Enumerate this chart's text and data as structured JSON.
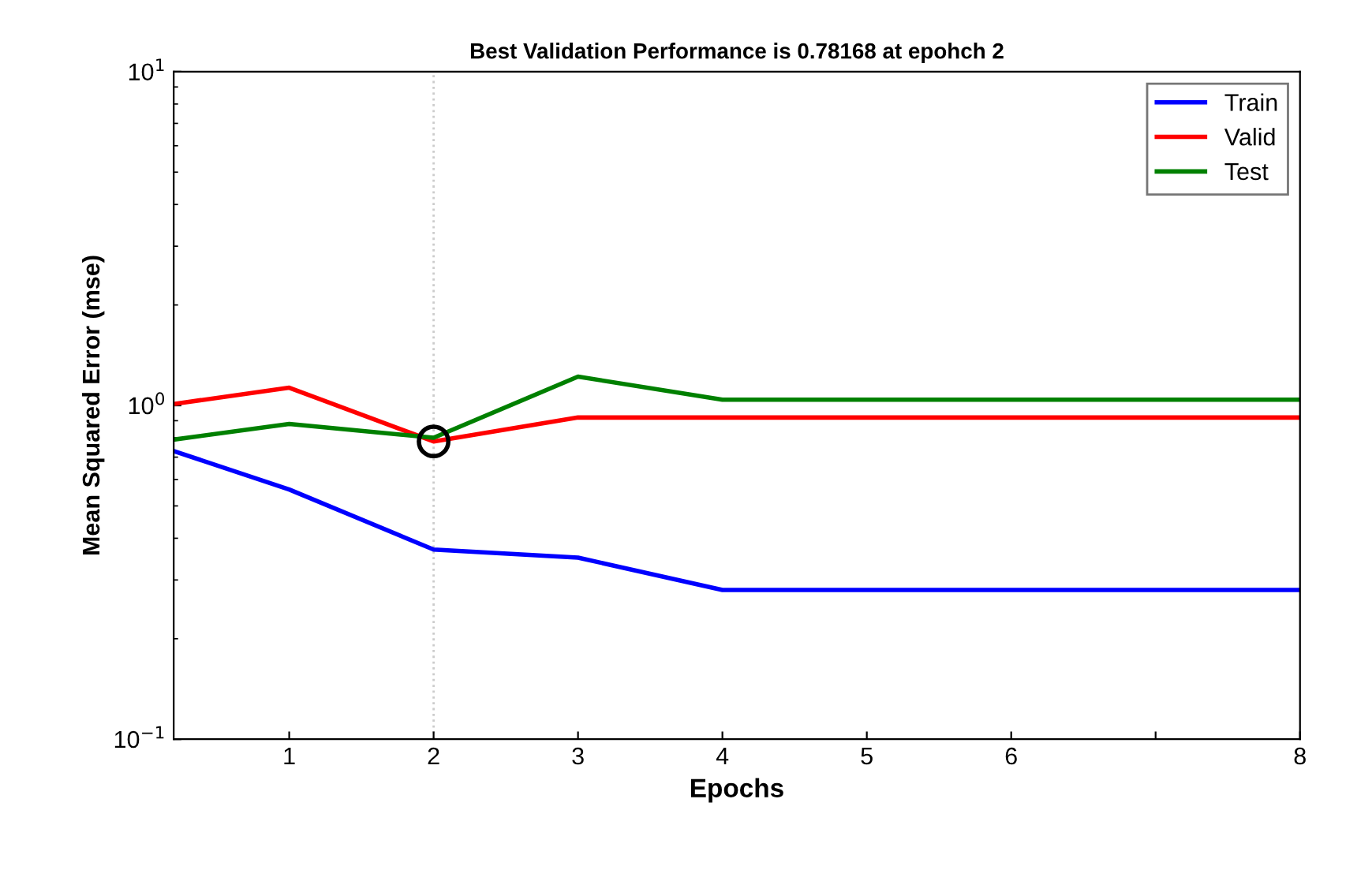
{
  "chart_data": {
    "type": "line",
    "title": "Best Validation Performance is 0.78168 at epohch 2",
    "xlabel": "Epochs",
    "ylabel": "Mean Squared Error (mse)",
    "log": "y",
    "xlim": [
      0.2,
      8
    ],
    "xticks": [
      1,
      2,
      3,
      4,
      5,
      6,
      {
        "value": 7,
        "label": null
      },
      8
    ],
    "ylim": [
      0.1,
      10
    ],
    "yticks": [
      {
        "value": 0.1,
        "label": "10$^{−1}$"
      },
      {
        "value": 1,
        "label": "10$^{0}$"
      },
      {
        "value": 10,
        "label": "10$^{1}$"
      }
    ],
    "grid": false,
    "legend": "top right",
    "line_style": "solid",
    "series": [
      {
        "name": "Train",
        "color": "#0000ff",
        "x": [
          0.2,
          1,
          2,
          3,
          4,
          8
        ],
        "values": [
          0.73,
          0.56,
          0.37,
          0.35,
          0.28,
          0.28
        ]
      },
      {
        "name": "Valid",
        "color": "#ff0000",
        "x": [
          0.2,
          1,
          2,
          3,
          4,
          8
        ],
        "values": [
          1.01,
          1.13,
          0.78,
          0.92,
          0.92,
          0.92
        ]
      },
      {
        "name": "Test",
        "color": "#008000",
        "x": [
          0.2,
          1,
          2,
          3,
          4,
          8
        ],
        "values": [
          0.79,
          0.88,
          0.8,
          1.22,
          1.04,
          1.04
        ]
      },
      {
        "type": "scatter",
        "marker": "circle",
        "color": "#000000",
        "x": [
          2
        ],
        "values": [
          0.78
        ]
      }
    ],
    "ref_lines": [
      {
        "axis": "x",
        "value": 2,
        "color": "#cccccc",
        "line_style": "dotted"
      }
    ]
  }
}
